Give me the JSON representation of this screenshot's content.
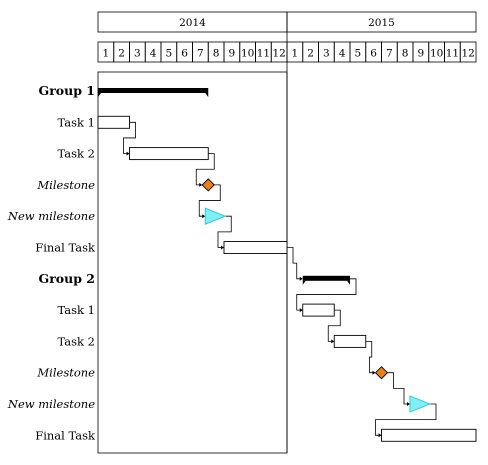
{
  "chart_data": {
    "type": "gantt",
    "years": [
      "2014",
      "2015"
    ],
    "months": [
      "1",
      "2",
      "3",
      "4",
      "5",
      "6",
      "7",
      "8",
      "9",
      "10",
      "11",
      "12"
    ],
    "colors": {
      "milestone_fill": "#f07f12",
      "milestone_stroke": "#000000",
      "new_milestone_fill": "#7feff5",
      "new_milestone_stroke": "#27c6d6",
      "group_bar": "#000000",
      "task_bar": "#ffffff"
    },
    "rows": [
      {
        "label": "Group 1",
        "kind": "group",
        "start": 0,
        "end": 7
      },
      {
        "label": "Task 1",
        "kind": "task",
        "start": 0,
        "end": 2
      },
      {
        "label": "Task 2",
        "kind": "task",
        "start": 2,
        "end": 7
      },
      {
        "label": "Milestone",
        "kind": "milestone",
        "at": 7
      },
      {
        "label": "New milestone",
        "kind": "newmilestone",
        "at": 7
      },
      {
        "label": "Final Task",
        "kind": "task",
        "start": 8,
        "end": 12
      },
      {
        "label": "Group 2",
        "kind": "group",
        "start": 13,
        "end": 16
      },
      {
        "label": "Task 1",
        "kind": "task",
        "start": 13,
        "end": 15
      },
      {
        "label": "Task 2",
        "kind": "task",
        "start": 15,
        "end": 17
      },
      {
        "label": "Milestone",
        "kind": "milestone",
        "at": 18
      },
      {
        "label": "New milestone",
        "kind": "newmilestone",
        "at": 20
      },
      {
        "label": "Final Task",
        "kind": "task",
        "start": 18,
        "end": 24
      }
    ],
    "links": [
      [
        1,
        2
      ],
      [
        2,
        3
      ],
      [
        3,
        4
      ],
      [
        4,
        5
      ],
      [
        5,
        6
      ],
      [
        6,
        7
      ],
      [
        7,
        8
      ],
      [
        8,
        9
      ],
      [
        9,
        10
      ],
      [
        10,
        11
      ]
    ]
  }
}
